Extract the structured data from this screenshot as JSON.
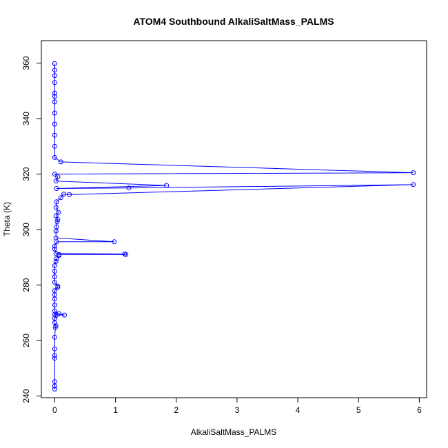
{
  "chart_data": {
    "type": "scatter",
    "title": "ATOM4 Southbound AlkaliSaltMass_PALMS",
    "xlabel": "AlkaliSaltMass_PALMS",
    "ylabel": "Theta (K)",
    "xlim": [
      -0.22,
      6.12
    ],
    "ylim": [
      239.4,
      368.1
    ],
    "xticks": [
      0,
      1,
      2,
      3,
      4,
      5,
      6
    ],
    "yticks": [
      240,
      260,
      280,
      300,
      320,
      340,
      360
    ],
    "grid": false,
    "connected": true,
    "colors": {
      "series": "#0000ff"
    },
    "points": [
      [
        0.0,
        242.5
      ],
      [
        0.0,
        243.6
      ],
      [
        0.0,
        245.2
      ],
      [
        0.0,
        253.6
      ],
      [
        0.0,
        254.6
      ],
      [
        0.0,
        257.0
      ],
      [
        0.0,
        261.2
      ],
      [
        0.01,
        264.7
      ],
      [
        0.02,
        265.3
      ],
      [
        0.0,
        266.4
      ],
      [
        0.0,
        268.0
      ],
      [
        0.02,
        269.0
      ],
      [
        0.0,
        269.4
      ],
      [
        0.16,
        269.2
      ],
      [
        0.07,
        269.7
      ],
      [
        0.0,
        270.6
      ],
      [
        0.0,
        272.8
      ],
      [
        0.0,
        275.0
      ],
      [
        0.0,
        276.5
      ],
      [
        0.0,
        278.0
      ],
      [
        0.05,
        279.2
      ],
      [
        0.05,
        279.6
      ],
      [
        0.0,
        281.0
      ],
      [
        0.0,
        283.0
      ],
      [
        0.0,
        285.0
      ],
      [
        0.0,
        287.0
      ],
      [
        0.02,
        288.5
      ],
      [
        0.03,
        289.5
      ],
      [
        0.07,
        290.7
      ],
      [
        0.07,
        291.0
      ],
      [
        1.17,
        291.0
      ],
      [
        1.15,
        291.2
      ],
      [
        0.02,
        291.4
      ],
      [
        0.0,
        293.0
      ],
      [
        0.0,
        294.0
      ],
      [
        0.03,
        295.6
      ],
      [
        0.98,
        295.6
      ],
      [
        0.02,
        297.0
      ],
      [
        0.02,
        299.5
      ],
      [
        0.03,
        301.0
      ],
      [
        0.04,
        302.8
      ],
      [
        0.05,
        303.6
      ],
      [
        0.02,
        305.0
      ],
      [
        0.06,
        306.2
      ],
      [
        0.02,
        308.0
      ],
      [
        0.03,
        310.0
      ],
      [
        0.1,
        311.5
      ],
      [
        0.15,
        312.8
      ],
      [
        0.24,
        312.6
      ],
      [
        5.9,
        316.2
      ],
      [
        1.22,
        315.0
      ],
      [
        0.03,
        314.8
      ],
      [
        1.84,
        315.9
      ],
      [
        0.02,
        317.5
      ],
      [
        0.05,
        319.0
      ],
      [
        0.0,
        320.0
      ],
      [
        5.9,
        320.5
      ],
      [
        0.1,
        324.4
      ],
      [
        0.0,
        326.0
      ],
      [
        0.0,
        330.0
      ],
      [
        0.0,
        334.0
      ],
      [
        0.0,
        338.0
      ],
      [
        0.0,
        342.0
      ],
      [
        0.0,
        346.0
      ],
      [
        0.0,
        348.0
      ],
      [
        0.0,
        349.2
      ],
      [
        0.0,
        353.0
      ],
      [
        0.0,
        355.5
      ],
      [
        0.0,
        357.5
      ],
      [
        0.0,
        359.8
      ]
    ]
  }
}
